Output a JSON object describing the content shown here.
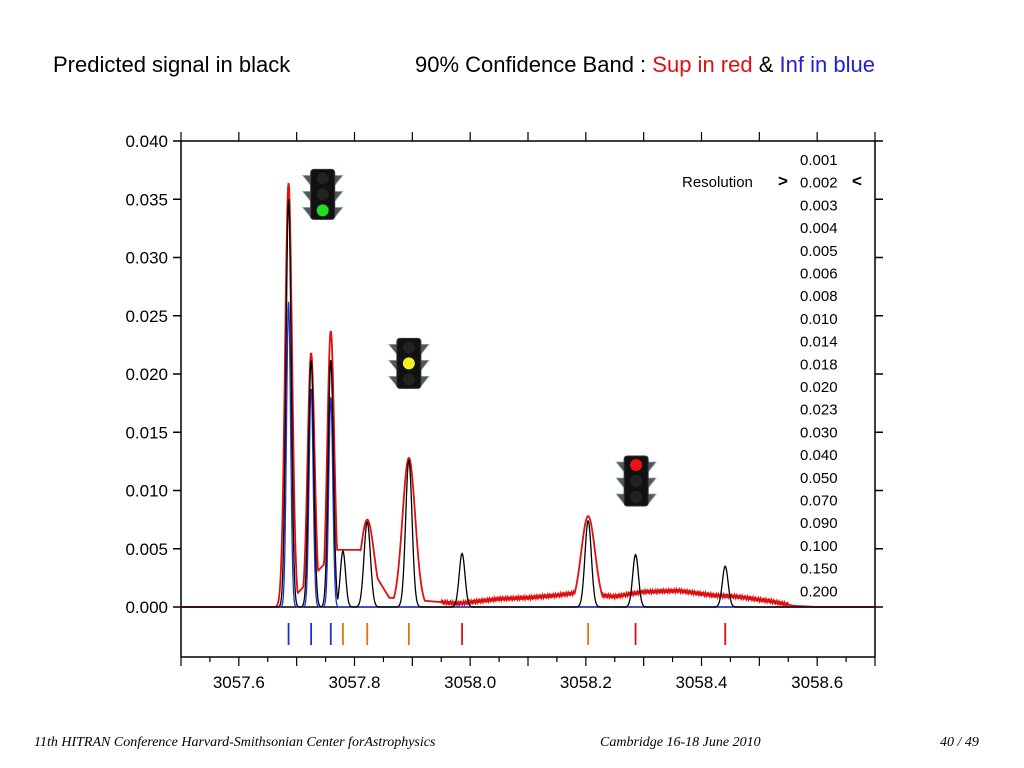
{
  "header": {
    "left": "Predicted signal in black",
    "band_label": "90% Confidence Band  :",
    "sup_label": "Sup in red",
    "amp": "&",
    "inf_label": "Inf in blue"
  },
  "footer": {
    "conference": "11th HITRAN Conference  Harvard-Smithsonian Center forAstrophysics",
    "place": "Cambridge 16-18 June 2010",
    "page": "40 / 49"
  },
  "colors": {
    "predicted": "#000000",
    "sup": "#e01010",
    "inf": "#2030d0",
    "stick_blue": "#2030d0",
    "stick_orange": "#e07800",
    "stick_red": "#e01010"
  },
  "chart_data": {
    "type": "line",
    "xlim": [
      3057.5,
      3058.7
    ],
    "ylim": [
      0.0,
      0.04
    ],
    "x_ticks": [
      "3057.6",
      "3057.8",
      "3058.0",
      "3058.2",
      "3058.4",
      "3058.6"
    ],
    "x_tick_values": [
      3057.6,
      3057.8,
      3058.0,
      3058.2,
      3058.4,
      3058.6
    ],
    "y_ticks": [
      "0.000",
      "0.005",
      "0.010",
      "0.015",
      "0.020",
      "0.025",
      "0.030",
      "0.035",
      "0.040"
    ],
    "y_tick_values": [
      0.0,
      0.005,
      0.01,
      0.015,
      0.02,
      0.025,
      0.03,
      0.035,
      0.04
    ],
    "resolution_label": "Resolution",
    "resolution_marker_left": ">",
    "resolution_marker_right": "<",
    "resolution_selected": "0.002",
    "resolution_values": [
      "0.001",
      "0.002",
      "0.003",
      "0.004",
      "0.005",
      "0.006",
      "0.008",
      "0.010",
      "0.014",
      "0.018",
      "0.020",
      "0.023",
      "0.030",
      "0.040",
      "0.050",
      "0.070",
      "0.090",
      "0.100",
      "0.150",
      "0.200"
    ],
    "series": [
      {
        "color": "#000000",
        "peaks": [
          {
            "x": 3057.686,
            "h": 0.035,
            "w": 0.0045
          },
          {
            "x": 3057.725,
            "h": 0.0212,
            "w": 0.0045
          },
          {
            "x": 3057.759,
            "h": 0.0212,
            "w": 0.0045
          },
          {
            "x": 3057.78,
            "h": 0.0048,
            "w": 0.0045
          },
          {
            "x": 3057.822,
            "h": 0.0073,
            "w": 0.0055
          },
          {
            "x": 3057.894,
            "h": 0.0126,
            "w": 0.0055
          },
          {
            "x": 3057.986,
            "h": 0.0046,
            "w": 0.005
          },
          {
            "x": 3058.204,
            "h": 0.0074,
            "w": 0.0055
          },
          {
            "x": 3058.286,
            "h": 0.0045,
            "w": 0.005
          },
          {
            "x": 3058.441,
            "h": 0.0035,
            "w": 0.005
          }
        ]
      },
      {
        "color": "#e01010",
        "peaks": [
          {
            "x": 3057.686,
            "h": 0.0364,
            "w": 0.006
          },
          {
            "x": 3057.725,
            "h": 0.0218,
            "w": 0.006
          },
          {
            "x": 3057.759,
            "h": 0.0237,
            "w": 0.006
          },
          {
            "x": 3057.78,
            "h": 0.0042,
            "w": 0.008
          },
          {
            "x": 3057.822,
            "h": 0.0075,
            "w": 0.012
          },
          {
            "x": 3057.894,
            "h": 0.0128,
            "w": 0.011
          },
          {
            "x": 3058.204,
            "h": 0.0078,
            "w": 0.012
          }
        ],
        "baseline": [
          [
            3057.5,
            0.0
          ],
          [
            3057.65,
            0.0
          ],
          [
            3057.68,
            0.0
          ],
          [
            3057.77,
            0.0049
          ],
          [
            3057.81,
            0.0049
          ],
          [
            3057.86,
            0.0008
          ],
          [
            3057.93,
            0.0005
          ],
          [
            3057.98,
            0.0003
          ],
          [
            3058.05,
            0.0007
          ],
          [
            3058.1,
            0.0008
          ],
          [
            3058.15,
            0.001
          ],
          [
            3058.18,
            0.0012
          ],
          [
            3058.25,
            0.0009
          ],
          [
            3058.3,
            0.0013
          ],
          [
            3058.36,
            0.0014
          ],
          [
            3058.42,
            0.001
          ],
          [
            3058.46,
            0.0009
          ],
          [
            3058.52,
            0.0005
          ],
          [
            3058.56,
            0.0001
          ],
          [
            3058.6,
            0.0
          ],
          [
            3058.7,
            0.0
          ]
        ]
      },
      {
        "color": "#2030d0",
        "peaks": [
          {
            "x": 3057.686,
            "h": 0.0262,
            "w": 0.0035
          },
          {
            "x": 3057.725,
            "h": 0.0188,
            "w": 0.0035
          },
          {
            "x": 3057.759,
            "h": 0.018,
            "w": 0.0035
          }
        ],
        "baseline": [
          [
            3057.5,
            0.0
          ],
          [
            3058.7,
            0.0
          ]
        ]
      }
    ],
    "sticks": [
      {
        "x": 3057.686,
        "color": "blue"
      },
      {
        "x": 3057.725,
        "color": "blue"
      },
      {
        "x": 3057.759,
        "color": "blue"
      },
      {
        "x": 3057.78,
        "color": "orange"
      },
      {
        "x": 3057.822,
        "color": "orange"
      },
      {
        "x": 3057.894,
        "color": "orange"
      },
      {
        "x": 3057.986,
        "color": "red"
      },
      {
        "x": 3058.204,
        "color": "orange"
      },
      {
        "x": 3058.286,
        "color": "red"
      },
      {
        "x": 3058.441,
        "color": "red"
      }
    ],
    "traffic_lights": [
      {
        "name": "traffic-light-green",
        "lit": "green",
        "x": 3057.745,
        "y": 0.0355
      },
      {
        "name": "traffic-light-yellow",
        "lit": "yellow",
        "x": 3057.894,
        "y": 0.021
      },
      {
        "name": "traffic-light-red",
        "lit": "red",
        "x": 3058.287,
        "y": 0.0109
      }
    ]
  }
}
